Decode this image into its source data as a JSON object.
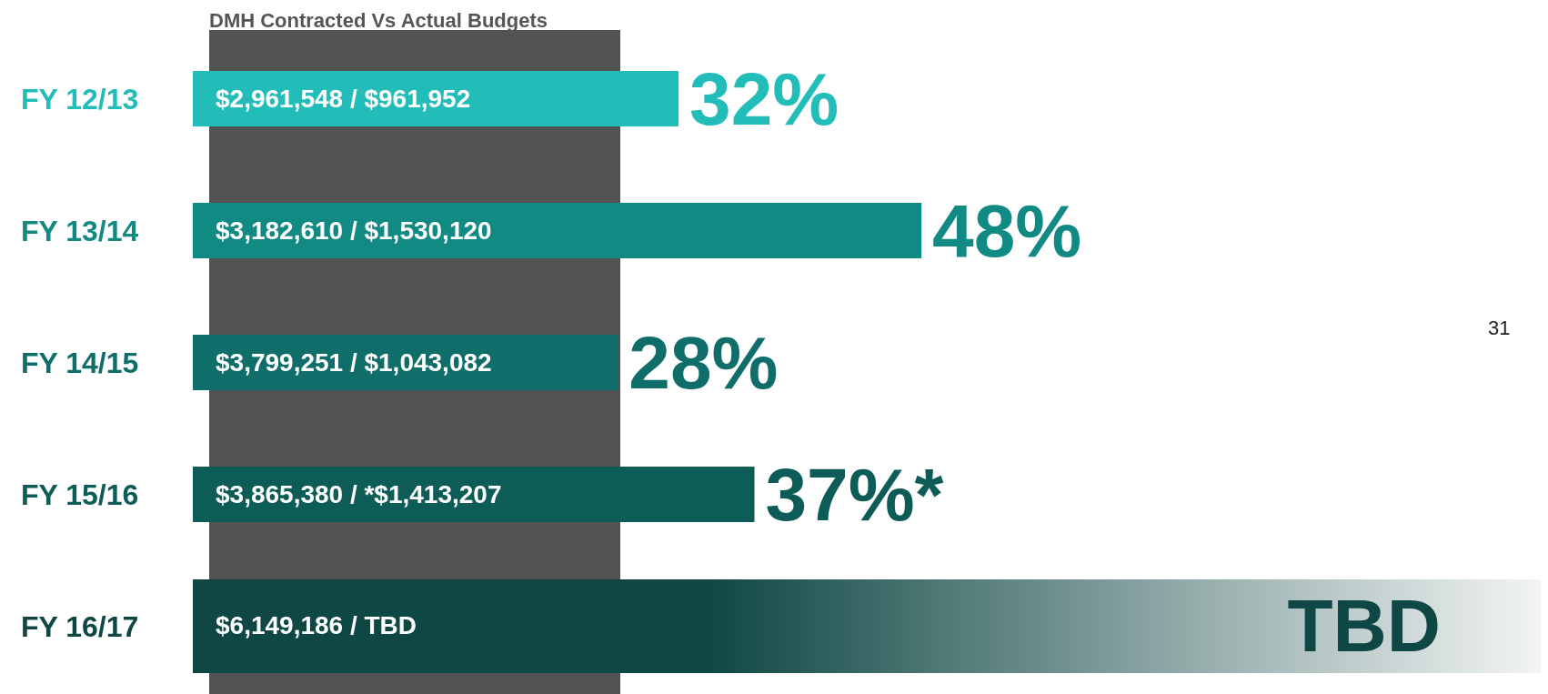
{
  "chart_data": {
    "type": "bar",
    "orientation": "horizontal",
    "title": "DMH Contracted Vs Actual Budgets",
    "categories": [
      "FY 12/13",
      "FY 13/14",
      "FY 14/15",
      "FY 15/16",
      "FY 16/17"
    ],
    "values": [
      32,
      48,
      28,
      37,
      null
    ],
    "colors": [
      "#22bdb9",
      "#128a84",
      "#0f6e69",
      "#0d5c58",
      "#0e4744"
    ],
    "value_labels": [
      "32%",
      "48%",
      "28%",
      "37%*",
      "TBD"
    ],
    "annotations": [
      "$2,961,548 / $961,952",
      "$3,182,610 / $1,530,120",
      "$3,799,251 / $1,043,082",
      "$3,865,380 / *$1,413,207",
      "$6,149,186 / TBD",
      "31"
    ],
    "grid": false,
    "legend": false
  }
}
